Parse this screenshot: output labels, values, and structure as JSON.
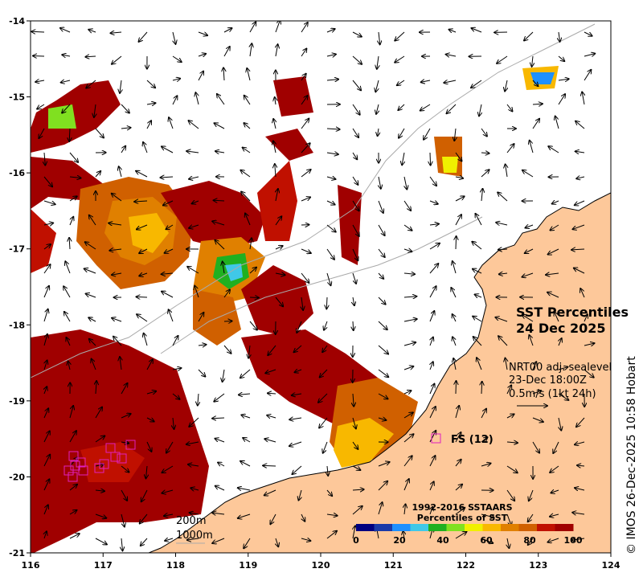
{
  "title": "SST Percentiles",
  "date": "24 Dec 2025",
  "currents": {
    "source": "NRT00 adj. sealevel",
    "time": "23-Dec 18:00Z",
    "scale": "0.5m/s (1kt 24h)"
  },
  "station": {
    "label": "FS (12)",
    "color": "#e020c0"
  },
  "contours": {
    "shallow": "200m",
    "deep": "1000m"
  },
  "colorbar": {
    "title_line1": "1992-2016 SSTAARS",
    "title_line2": "Percentiles of SST",
    "colors": [
      "#000080",
      "#1a3aa8",
      "#1e90ff",
      "#40c8e8",
      "#20b020",
      "#80e020",
      "#f0f000",
      "#f8b800",
      "#e08000",
      "#d06000",
      "#c01000",
      "#a00000"
    ],
    "ticks": [
      "0",
      "20",
      "40",
      "60",
      "80",
      "100"
    ]
  },
  "axes": {
    "x_ticks": [
      "116",
      "117",
      "118",
      "119",
      "120",
      "121",
      "122",
      "123",
      "124"
    ],
    "y_ticks": [
      "-14",
      "-15",
      "-16",
      "-17",
      "-18",
      "-19",
      "-20",
      "-21"
    ],
    "xlim": [
      116,
      124
    ],
    "ylim": [
      -21,
      -14
    ]
  },
  "land_color": "#fdc89a",
  "credit": "© IMOS 26-Dec-2025 10:58 Hobart"
}
